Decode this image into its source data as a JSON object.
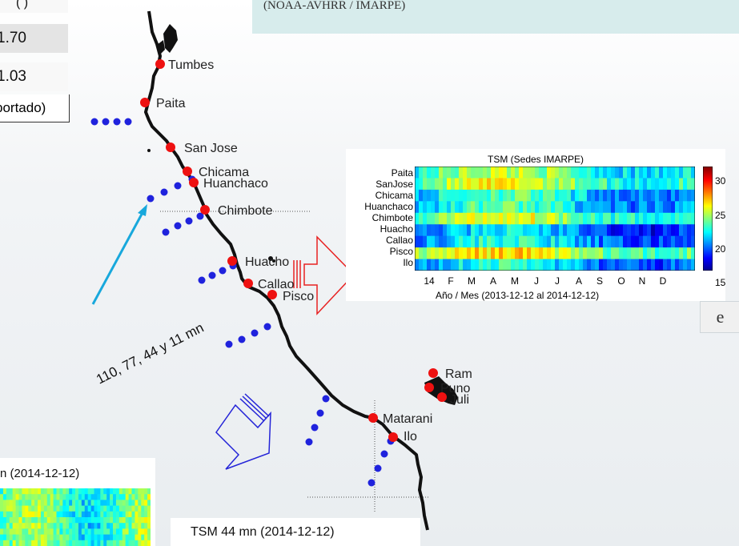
{
  "top_caption": "(NOAA-AVHRR / IMARPE)",
  "stats": {
    "top_fragment": "( )",
    "value1": "1.70",
    "value2": "1.03",
    "note": "portado)"
  },
  "cities": [
    "Tumbes",
    "Paita",
    "San Jose",
    "Chicama",
    "Huanchaco",
    "Chimbote",
    "Huacho",
    "Callao",
    "Pisco",
    "Matarani",
    "Ilo",
    "Ram",
    "Puno",
    "Juli"
  ],
  "distance_label": "110, 77, 44  y  11 mn",
  "heatmap": {
    "title": "TSM (Sedes IMARPE)",
    "rows": [
      "Paita",
      "SanJose",
      "Chicama",
      "Huanchaco",
      "Chimbote",
      "Huacho",
      "Callao",
      "Pisco",
      "Ilo"
    ],
    "x_ticks": [
      "14",
      "F",
      "M",
      "A",
      "M",
      "J",
      "J",
      "A",
      "S",
      "O",
      "N",
      "D"
    ],
    "x_label": "Año / Mes (2013-12-12 al 2014-12-12)",
    "colorbar_ticks": [
      "30",
      "25",
      "20",
      "15"
    ]
  },
  "right_letter": "e",
  "bottom_left_title": "n (2014-12-12)",
  "bottom_mid_title": "TSM 44 mn (2014-12-12)",
  "colors": {
    "station": "#ee1111",
    "offshore": "#1f22dd",
    "arrow_cyan": "#18a8dc",
    "arrow_red": "#e82222",
    "arrow_blue": "#2424d8"
  }
}
